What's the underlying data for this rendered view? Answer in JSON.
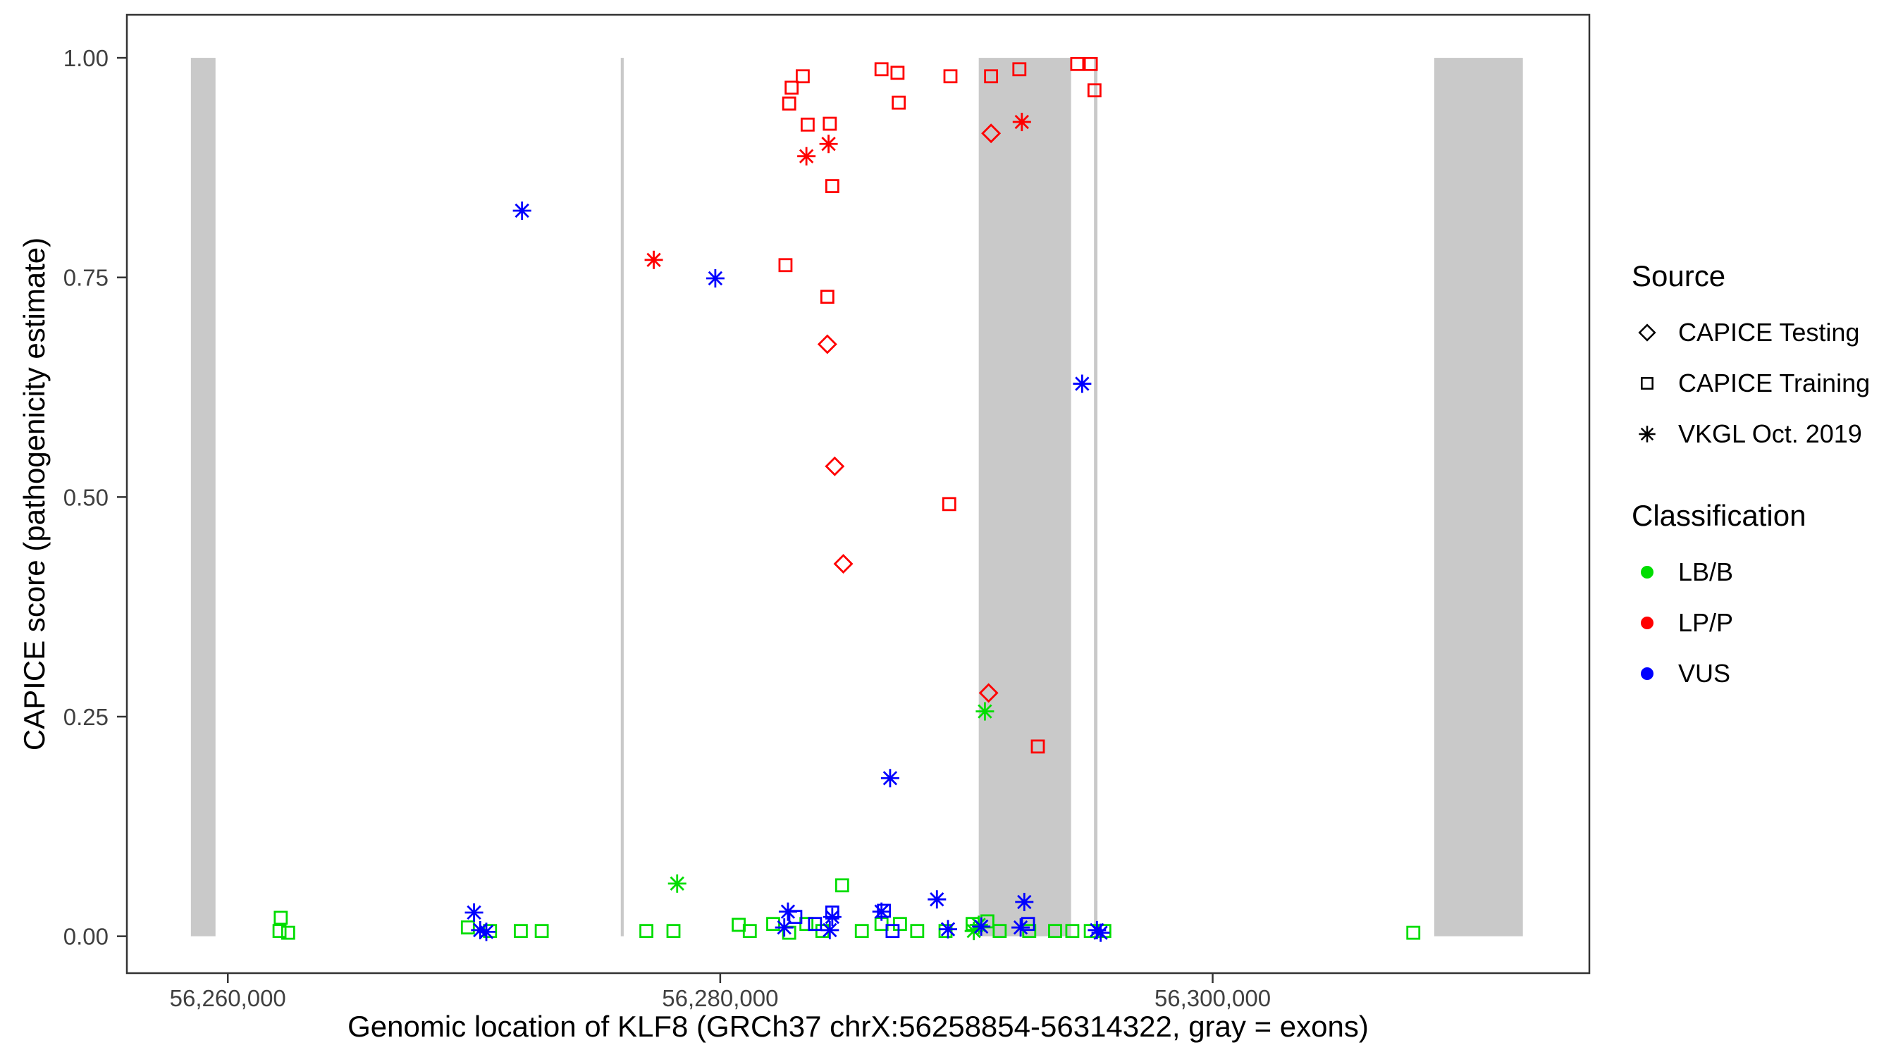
{
  "chart_data": {
    "type": "scatter",
    "title": "",
    "xlabel": "Genomic location of KLF8 (GRCh37 chrX:56258854-56314322, gray = exons)",
    "ylabel": "CAPICE score (pathogenicity estimate)",
    "xlim": [
      56255900,
      56315300
    ],
    "ylim": [
      -0.042,
      1.049
    ],
    "grid": "off",
    "axis_color": "#333333",
    "tick_label_color": "#404040",
    "exon_color": "#C9C9C9",
    "x_ticks": [
      {
        "value": 56260000,
        "label": "56,260,000"
      },
      {
        "value": 56280000,
        "label": "56,280,000"
      },
      {
        "value": 56300000,
        "label": "56,300,000"
      }
    ],
    "y_ticks": [
      {
        "value": 0,
        "label": "0.00"
      },
      {
        "value": 0.25,
        "label": "0.25"
      },
      {
        "value": 0.5,
        "label": "0.50"
      },
      {
        "value": 0.75,
        "label": "0.75"
      },
      {
        "value": 1,
        "label": "1.00"
      }
    ],
    "exons": [
      [
        56258500,
        56259500
      ],
      [
        56275960,
        56276080
      ],
      [
        56290500,
        56294250
      ],
      [
        56295180,
        56295320
      ],
      [
        56309000,
        56312600
      ]
    ],
    "colors": {
      "LB_B": "#00DD00",
      "LP_P": "#FF0000",
      "VUS": "#0000FF"
    },
    "legend": {
      "position": "right",
      "source": {
        "title": "Source",
        "items": [
          {
            "label": "CAPICE Testing",
            "shape": "diamond"
          },
          {
            "label": "CAPICE Training",
            "shape": "square"
          },
          {
            "label": "VKGL Oct. 2019",
            "shape": "asterisk"
          }
        ]
      },
      "classification": {
        "title": "Classification",
        "items": [
          {
            "label": "LB/B",
            "color": "#00DD00"
          },
          {
            "label": "LP/P",
            "color": "#FF0000"
          },
          {
            "label": "VUS",
            "color": "#0000FF"
          }
        ]
      }
    },
    "series": [
      {
        "source": "CAPICE Testing",
        "classification": "LP/P",
        "shape": "diamond",
        "color": "#FF0000",
        "points": [
          [
            56284350,
            0.674
          ],
          [
            56284650,
            0.535
          ],
          [
            56285000,
            0.424
          ],
          [
            56291000,
            0.914
          ],
          [
            56290900,
            0.277
          ]
        ]
      },
      {
        "source": "CAPICE Training",
        "classification": "LP/P",
        "shape": "square",
        "color": "#FF0000",
        "points": [
          [
            56282900,
            0.966
          ],
          [
            56283350,
            0.979
          ],
          [
            56282800,
            0.948
          ],
          [
            56283550,
            0.924
          ],
          [
            56284450,
            0.925
          ],
          [
            56284550,
            0.854
          ],
          [
            56282650,
            0.764
          ],
          [
            56284350,
            0.728
          ],
          [
            56286550,
            0.987
          ],
          [
            56287200,
            0.983
          ],
          [
            56287250,
            0.949
          ],
          [
            56289350,
            0.979
          ],
          [
            56289300,
            0.492
          ],
          [
            56291000,
            0.979
          ],
          [
            56292150,
            0.987
          ],
          [
            56292900,
            0.216
          ],
          [
            56294500,
            0.993
          ],
          [
            56295050,
            0.993
          ],
          [
            56295200,
            0.963
          ]
        ]
      },
      {
        "source": "VKGL Oct. 2019",
        "classification": "LP/P",
        "shape": "asterisk",
        "color": "#FF0000",
        "points": [
          [
            56277300,
            0.77
          ],
          [
            56283500,
            0.888
          ],
          [
            56284400,
            0.902
          ],
          [
            56292250,
            0.927
          ]
        ]
      },
      {
        "source": "CAPICE Training",
        "classification": "LB/B",
        "shape": "square",
        "color": "#00DD00",
        "points": [
          [
            56262150,
            0.021
          ],
          [
            56262100,
            0.006
          ],
          [
            56262450,
            0.004
          ],
          [
            56269750,
            0.01
          ],
          [
            56270650,
            0.006
          ],
          [
            56271900,
            0.006
          ],
          [
            56272750,
            0.006
          ],
          [
            56277000,
            0.006
          ],
          [
            56278100,
            0.006
          ],
          [
            56280750,
            0.013
          ],
          [
            56281200,
            0.006
          ],
          [
            56282150,
            0.014
          ],
          [
            56282800,
            0.004
          ],
          [
            56283500,
            0.014
          ],
          [
            56284150,
            0.006
          ],
          [
            56284950,
            0.058
          ],
          [
            56285750,
            0.006
          ],
          [
            56286550,
            0.014
          ],
          [
            56287300,
            0.014
          ],
          [
            56288000,
            0.006
          ],
          [
            56289150,
            0.006
          ],
          [
            56290250,
            0.014
          ],
          [
            56290850,
            0.017
          ],
          [
            56291350,
            0.006
          ],
          [
            56292550,
            0.006
          ],
          [
            56293600,
            0.006
          ],
          [
            56294300,
            0.006
          ],
          [
            56295050,
            0.006
          ],
          [
            56295600,
            0.006
          ],
          [
            56308150,
            0.004
          ]
        ]
      },
      {
        "source": "CAPICE Training",
        "classification": "VUS",
        "shape": "square",
        "color": "#0000FF",
        "points": [
          [
            56283050,
            0.022
          ],
          [
            56283850,
            0.014
          ],
          [
            56284550,
            0.027
          ],
          [
            56286650,
            0.029
          ],
          [
            56287000,
            0.006
          ],
          [
            56292500,
            0.014
          ]
        ]
      },
      {
        "source": "VKGL Oct. 2019",
        "classification": "LB/B",
        "shape": "asterisk",
        "color": "#00DD00",
        "points": [
          [
            56278250,
            0.06
          ],
          [
            56290750,
            0.256
          ],
          [
            56290500,
            0.013
          ],
          [
            56290300,
            0.006
          ]
        ]
      },
      {
        "source": "VKGL Oct. 2019",
        "classification": "VUS",
        "shape": "asterisk",
        "color": "#0000FF",
        "points": [
          [
            56271950,
            0.826
          ],
          [
            56279800,
            0.749
          ],
          [
            56294700,
            0.629
          ],
          [
            56286900,
            0.18
          ],
          [
            56270000,
            0.027
          ],
          [
            56270250,
            0.007
          ],
          [
            56270500,
            0.005
          ],
          [
            56282750,
            0.028
          ],
          [
            56282600,
            0.01
          ],
          [
            56284550,
            0.022
          ],
          [
            56284450,
            0.007
          ],
          [
            56286550,
            0.028
          ],
          [
            56288800,
            0.042
          ],
          [
            56289250,
            0.008
          ],
          [
            56290600,
            0.011
          ],
          [
            56292350,
            0.039
          ],
          [
            56292200,
            0.01
          ],
          [
            56295300,
            0.007
          ],
          [
            56295450,
            0.004
          ]
        ]
      }
    ]
  }
}
